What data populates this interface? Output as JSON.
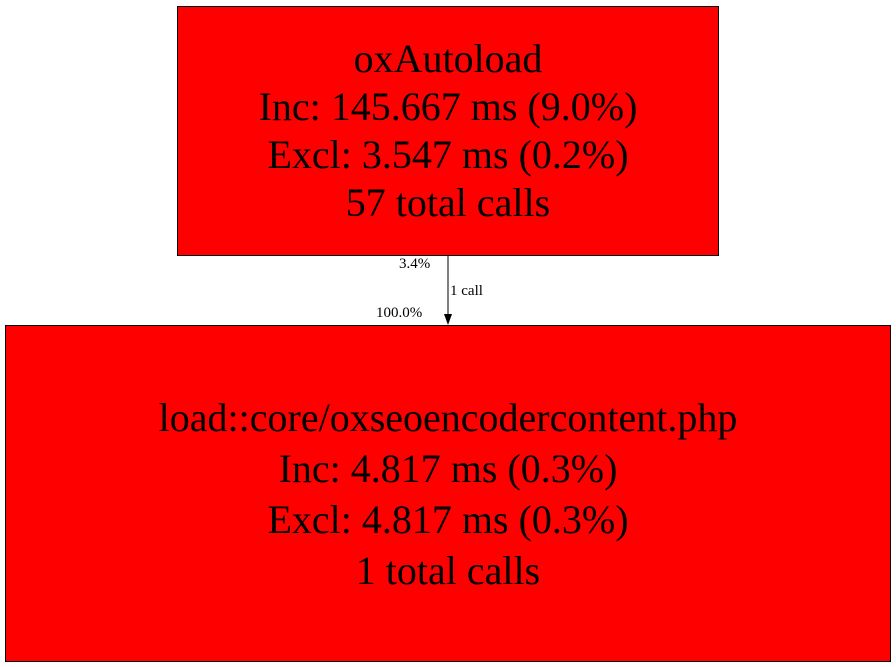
{
  "colors": {
    "node_fill": "#ff0000",
    "stroke": "#000000"
  },
  "nodes": [
    {
      "lines": [
        "oxAutoload",
        "Inc: 145.667 ms (9.0%)",
        "Excl: 3.547 ms (0.2%)",
        "57 total calls"
      ]
    },
    {
      "lines": [
        "load::core/oxseoencodercontent.php",
        "Inc: 4.817 ms (0.3%)",
        "Excl: 4.817 ms (0.3%)",
        "1 total calls"
      ]
    }
  ],
  "edge": {
    "tail_label": "3.4%",
    "label": "1 call",
    "head_label": "100.0%"
  }
}
